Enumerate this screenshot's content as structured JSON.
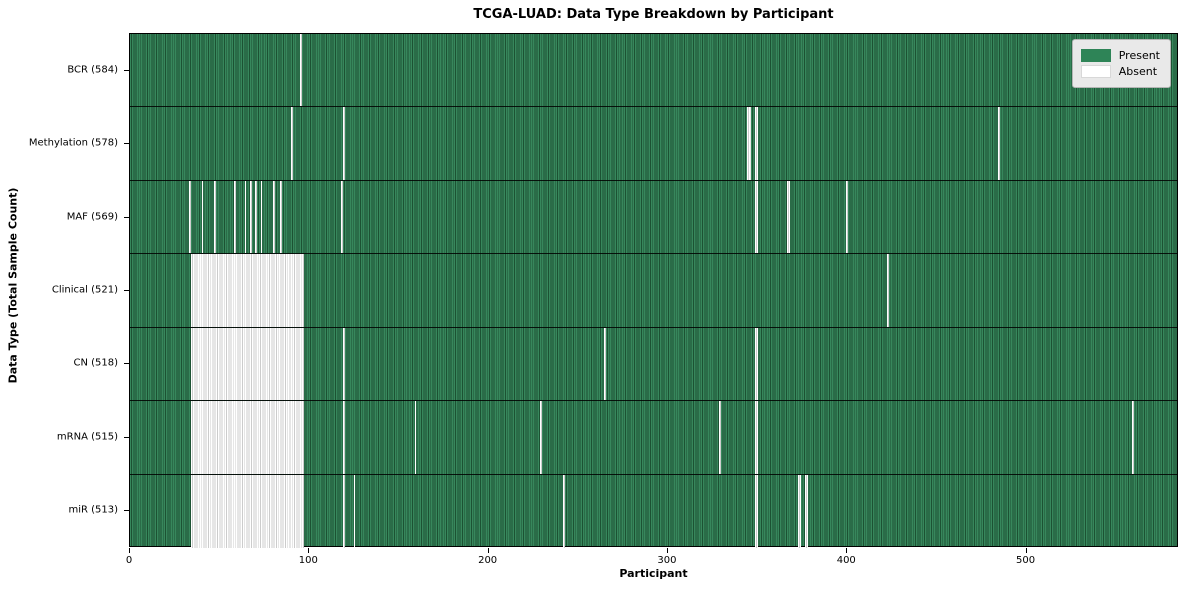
{
  "title": "TCGA-LUAD: Data Type Breakdown by Participant",
  "axes": {
    "xlabel": "Participant",
    "ylabel": "Data Type (Total Sample Count)"
  },
  "legend": {
    "present_label": "Present",
    "absent_label": "Absent"
  },
  "colors": {
    "present_light": "#37875c",
    "present_dark": "#1c5233",
    "absent_white": "#ffffff",
    "absent_edge": "#cccccc",
    "legend_present_swatch": "#2e8457",
    "legend_absent_swatch": "#ffffff",
    "legend_background": "#e9e9e9"
  },
  "chart_data": {
    "type": "heatmap",
    "title": "TCGA-LUAD: Data Type Breakdown by Participant",
    "xlabel": "Participant",
    "ylabel": "Data Type (Total Sample Count)",
    "legend_entries": [
      "Present",
      "Absent"
    ],
    "legend_position": "upper right",
    "n_participants": 585,
    "x_ticks": [
      0,
      100,
      200,
      300,
      400,
      500
    ],
    "xlim": [
      0,
      585
    ],
    "cell_states": [
      "present",
      "absent"
    ],
    "rows": [
      {
        "label": "BCR (584)",
        "data_type": "BCR",
        "present_count": 584,
        "absent_segments": [
          [
            95,
            96
          ]
        ]
      },
      {
        "label": "Methylation (578)",
        "data_type": "Methylation",
        "present_count": 578,
        "absent_segments": [
          [
            90,
            91
          ],
          [
            119,
            120
          ],
          [
            345,
            347
          ],
          [
            349,
            351
          ],
          [
            485,
            486
          ]
        ]
      },
      {
        "label": "MAF (569)",
        "data_type": "MAF",
        "present_count": 569,
        "absent_segments": [
          [
            33,
            34
          ],
          [
            40,
            41
          ],
          [
            47,
            48
          ],
          [
            58,
            59
          ],
          [
            64,
            65
          ],
          [
            67,
            68
          ],
          [
            70,
            71
          ],
          [
            73,
            74
          ],
          [
            80,
            81
          ],
          [
            84,
            85
          ],
          [
            118,
            119
          ],
          [
            349,
            351
          ],
          [
            367,
            369
          ],
          [
            400,
            401
          ]
        ]
      },
      {
        "label": "Clinical (521)",
        "data_type": "Clinical",
        "present_count": 521,
        "absent_segments": [
          [
            34,
            97
          ],
          [
            423,
            424
          ]
        ]
      },
      {
        "label": "CN (518)",
        "data_type": "CN",
        "present_count": 518,
        "absent_segments": [
          [
            34,
            97
          ],
          [
            119,
            120
          ],
          [
            265,
            266
          ],
          [
            349,
            351
          ]
        ]
      },
      {
        "label": "mRNA (515)",
        "data_type": "mRNA",
        "present_count": 515,
        "absent_segments": [
          [
            34,
            97
          ],
          [
            119,
            120
          ],
          [
            159,
            160
          ],
          [
            229,
            230
          ],
          [
            329,
            330
          ],
          [
            349,
            351
          ],
          [
            560,
            561
          ]
        ]
      },
      {
        "label": "miR (513)",
        "data_type": "miR",
        "present_count": 513,
        "absent_segments": [
          [
            34,
            97
          ],
          [
            119,
            120
          ],
          [
            125,
            126
          ],
          [
            242,
            243
          ],
          [
            349,
            351
          ],
          [
            373,
            375
          ],
          [
            377,
            379
          ]
        ]
      }
    ]
  }
}
